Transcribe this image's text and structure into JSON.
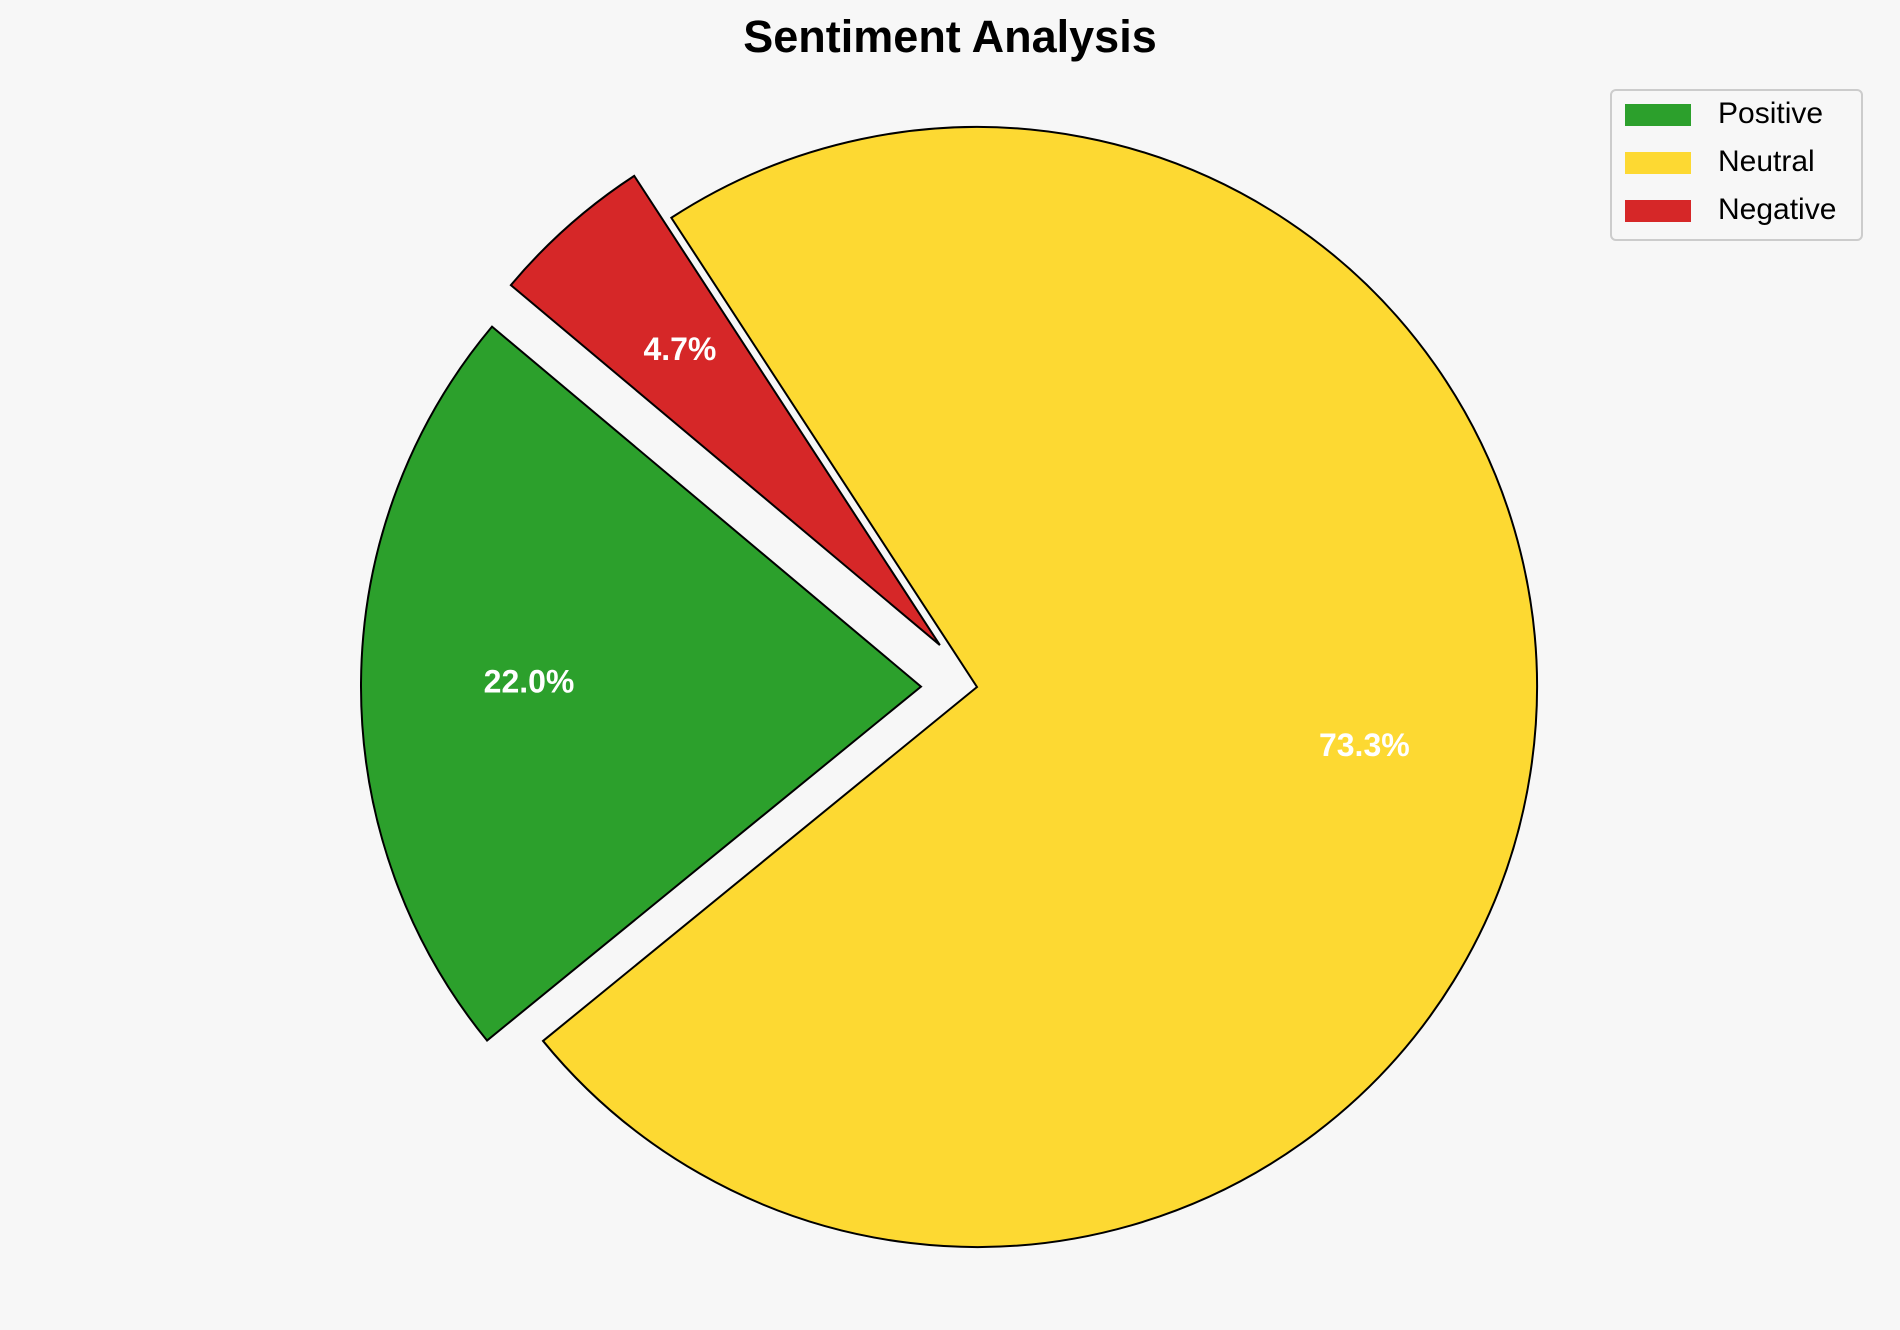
{
  "chart_data": {
    "type": "pie",
    "title": "Sentiment Analysis",
    "categories": [
      "Positive",
      "Neutral",
      "Negative"
    ],
    "values": [
      22.0,
      73.3,
      4.7
    ],
    "value_labels": [
      "22.0%",
      "73.3%",
      "4.7%"
    ],
    "colors": [
      "#2ca02c",
      "#fdd932",
      "#d62728"
    ],
    "explode": [
      0.1,
      0,
      0.1
    ],
    "start_angle": 140,
    "legend": "upper right"
  }
}
